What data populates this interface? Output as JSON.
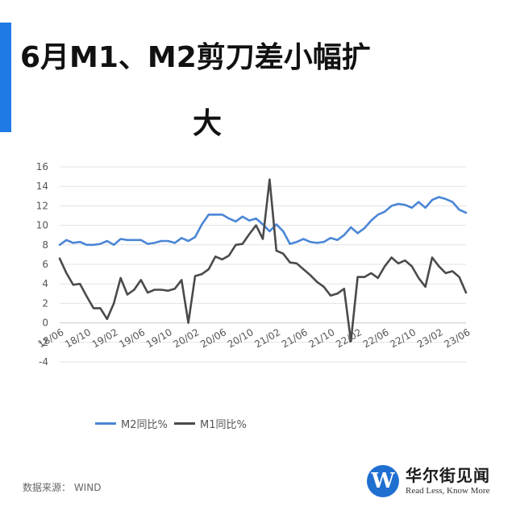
{
  "header": {
    "title_line1": "6月M1、M2剪刀差小幅扩",
    "title_line2": "大",
    "accent_color": "#1f7ae6"
  },
  "chart_data": {
    "type": "line",
    "title": "6月M1、M2剪刀差小幅扩大",
    "ylim": [
      -4,
      16
    ],
    "yticks": [
      -4,
      -2,
      0,
      2,
      4,
      6,
      8,
      10,
      12,
      14,
      16
    ],
    "grid": true,
    "legend_position": "bottom",
    "x": [
      "18/06",
      "18/07",
      "18/08",
      "18/09",
      "18/10",
      "18/11",
      "18/12",
      "19/01",
      "19/02",
      "19/03",
      "19/04",
      "19/05",
      "19/06",
      "19/07",
      "19/08",
      "19/09",
      "19/10",
      "19/11",
      "19/12",
      "20/01",
      "20/02",
      "20/03",
      "20/04",
      "20/05",
      "20/06",
      "20/07",
      "20/08",
      "20/09",
      "20/10",
      "20/11",
      "20/12",
      "21/01",
      "21/02",
      "21/03",
      "21/04",
      "21/05",
      "21/06",
      "21/07",
      "21/08",
      "21/09",
      "21/10",
      "21/11",
      "21/12",
      "22/01",
      "22/02",
      "22/03",
      "22/04",
      "22/05",
      "22/06",
      "22/07",
      "22/08",
      "22/09",
      "22/10",
      "22/11",
      "22/12",
      "23/01",
      "23/02",
      "23/03",
      "23/04",
      "23/05",
      "23/06"
    ],
    "xtick_labels": [
      "18/06",
      "18/10",
      "19/02",
      "19/06",
      "19/10",
      "20/02",
      "20/06",
      "20/10",
      "21/02",
      "21/06",
      "21/10",
      "22/02",
      "22/06",
      "22/10",
      "23/02",
      "23/06"
    ],
    "series": [
      {
        "name": "M2同比%",
        "color": "#4a86d6",
        "values": [
          8.0,
          8.5,
          8.2,
          8.3,
          8.0,
          8.0,
          8.1,
          8.4,
          8.0,
          8.6,
          8.5,
          8.5,
          8.5,
          8.1,
          8.2,
          8.4,
          8.4,
          8.2,
          8.7,
          8.4,
          8.8,
          10.1,
          11.1,
          11.1,
          11.1,
          10.7,
          10.4,
          10.9,
          10.5,
          10.7,
          10.1,
          9.4,
          10.1,
          9.4,
          8.1,
          8.3,
          8.6,
          8.3,
          8.2,
          8.3,
          8.7,
          8.5,
          9.0,
          9.8,
          9.2,
          9.7,
          10.5,
          11.1,
          11.4,
          12.0,
          12.2,
          12.1,
          11.8,
          12.4,
          11.8,
          12.6,
          12.9,
          12.7,
          12.4,
          11.6,
          11.3
        ]
      },
      {
        "name": "M1同比%",
        "color": "#4a4a4a",
        "values": [
          6.6,
          5.1,
          3.9,
          4.0,
          2.7,
          1.5,
          1.5,
          0.4,
          2.0,
          4.6,
          2.9,
          3.4,
          4.4,
          3.1,
          3.4,
          3.4,
          3.3,
          3.5,
          4.4,
          0.0,
          4.8,
          5.0,
          5.5,
          6.8,
          6.5,
          6.9,
          8.0,
          8.1,
          9.1,
          10.0,
          8.6,
          14.7,
          7.4,
          7.1,
          6.2,
          6.1,
          5.5,
          4.9,
          4.2,
          3.7,
          2.8,
          3.0,
          3.5,
          -1.9,
          4.7,
          4.7,
          5.1,
          4.6,
          5.8,
          6.7,
          6.1,
          6.4,
          5.8,
          4.6,
          3.7,
          6.7,
          5.8,
          5.1,
          5.3,
          4.7,
          3.1
        ]
      }
    ]
  },
  "legend": {
    "m2_label": "M2同比%",
    "m1_label": "M1同比%"
  },
  "footer": {
    "source": "数据来源： WIND",
    "logo_cn": "华尔街见闻",
    "logo_en": "Read Less, Know More",
    "logo_glyph": "W",
    "logo_color": "#1f6fd1"
  }
}
